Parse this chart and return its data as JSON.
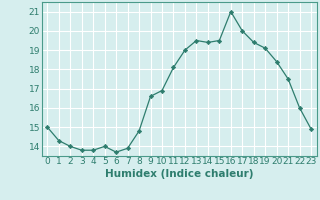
{
  "x": [
    0,
    1,
    2,
    3,
    4,
    5,
    6,
    7,
    8,
    9,
    10,
    11,
    12,
    13,
    14,
    15,
    16,
    17,
    18,
    19,
    20,
    21,
    22,
    23
  ],
  "y": [
    15.0,
    14.3,
    14.0,
    13.8,
    13.8,
    14.0,
    13.7,
    13.9,
    14.8,
    16.6,
    16.9,
    18.1,
    19.0,
    19.5,
    19.4,
    19.5,
    21.0,
    20.0,
    19.4,
    19.1,
    18.4,
    17.5,
    16.0,
    14.9
  ],
  "xlabel": "Humidex (Indice chaleur)",
  "ylim": [
    13.5,
    21.5
  ],
  "xlim": [
    -0.5,
    23.5
  ],
  "yticks": [
    14,
    15,
    16,
    17,
    18,
    19,
    20,
    21
  ],
  "xticks": [
    0,
    1,
    2,
    3,
    4,
    5,
    6,
    7,
    8,
    9,
    10,
    11,
    12,
    13,
    14,
    15,
    16,
    17,
    18,
    19,
    20,
    21,
    22,
    23
  ],
  "line_color": "#2e7d6e",
  "marker": "D",
  "marker_size": 2.2,
  "bg_color": "#d6eeee",
  "grid_color": "#ffffff",
  "xlabel_fontsize": 7.5,
  "tick_fontsize": 6.5,
  "spine_color": "#4a9a8a"
}
